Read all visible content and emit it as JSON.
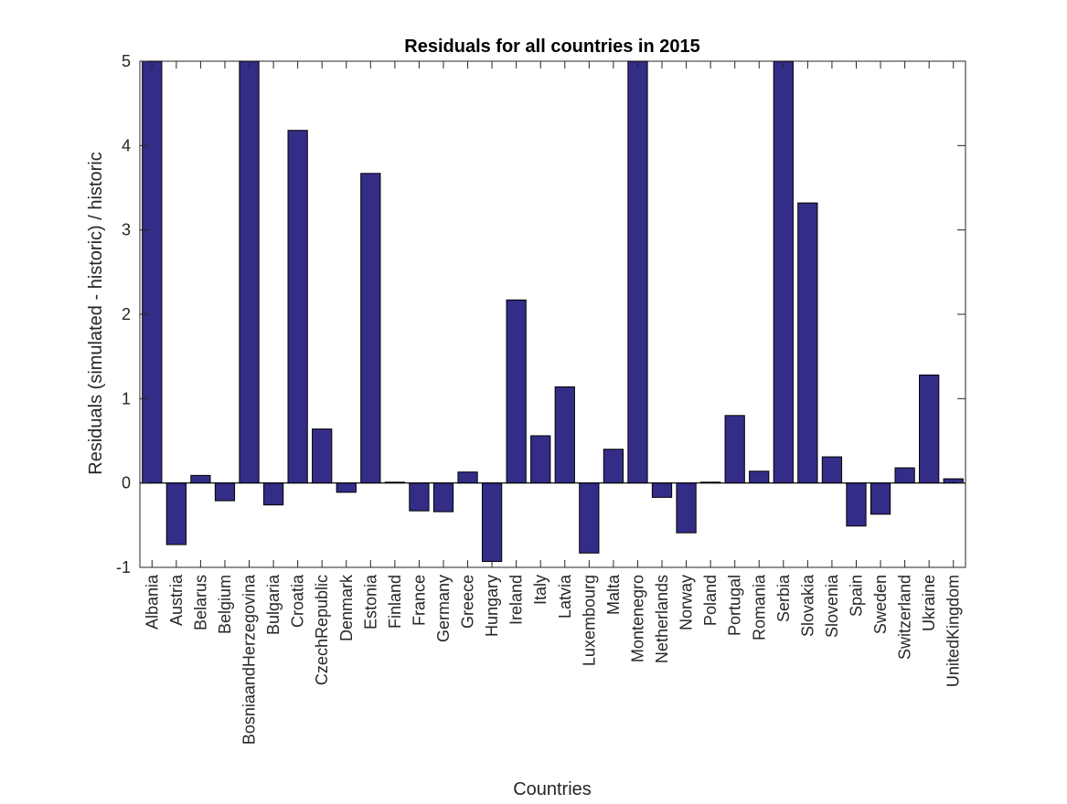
{
  "chart_data": {
    "type": "bar",
    "title": "Residuals for all countries in 2015",
    "xlabel": "Countries",
    "ylabel": "Residuals (simulated - historic) / historic",
    "ylim": [
      -1,
      5
    ],
    "yticks": [
      -1,
      0,
      1,
      2,
      3,
      4,
      5
    ],
    "grid": false,
    "bar_color": "#332d87",
    "bar_edge_color": "#000000",
    "categories": [
      "Albania",
      "Austria",
      "Belarus",
      "Belgium",
      "BosniaandHerzegovina",
      "Bulgaria",
      "Croatia",
      "CzechRepublic",
      "Denmark",
      "Estonia",
      "Finland",
      "France",
      "Germany",
      "Greece",
      "Hungary",
      "Ireland",
      "Italy",
      "Latvia",
      "Luxembourg",
      "Malta",
      "Montenegro",
      "Netherlands",
      "Norway",
      "Poland",
      "Portugal",
      "Romania",
      "Serbia",
      "Slovakia",
      "Slovenia",
      "Spain",
      "Sweden",
      "Switzerland",
      "Ukraine",
      "UnitedKingdom"
    ],
    "values": [
      5.0,
      -0.73,
      0.09,
      -0.21,
      5.0,
      -0.26,
      4.18,
      0.64,
      -0.11,
      3.67,
      0.01,
      -0.33,
      -0.34,
      0.13,
      -0.93,
      2.17,
      0.56,
      1.14,
      -0.83,
      0.4,
      5.0,
      -0.17,
      -0.59,
      0.01,
      0.8,
      0.14,
      5.0,
      3.32,
      0.31,
      -0.51,
      -0.37,
      0.18,
      1.28,
      0.05
    ]
  }
}
